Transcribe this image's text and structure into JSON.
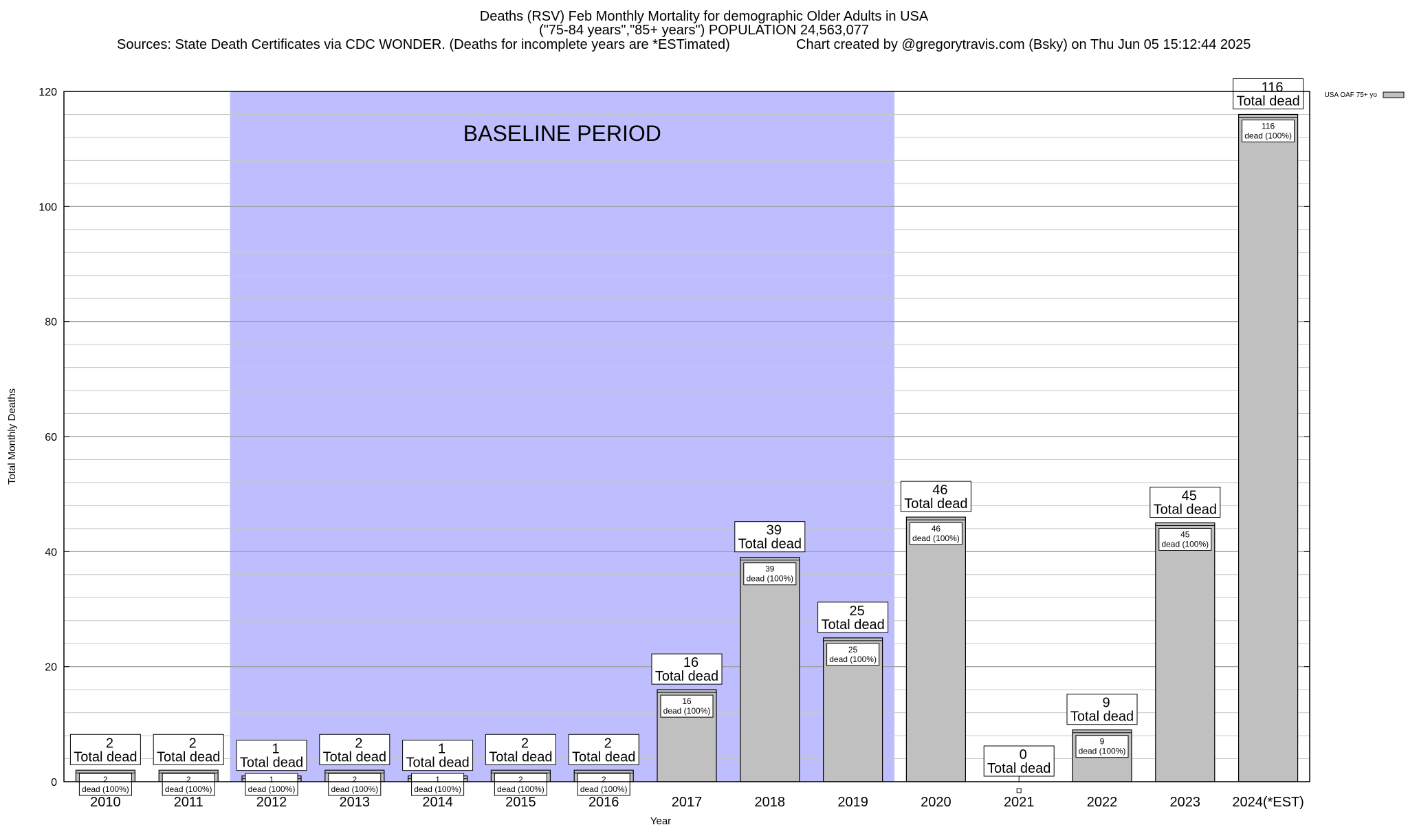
{
  "header": {
    "title_line1": "Deaths (RSV) Feb Monthly Mortality for demographic Older Adults in USA",
    "title_line2": "(\"75-84 years\",\"85+ years\") POPULATION 24,563,077",
    "sources": "Sources: State Death Certificates via CDC WONDER. (Deaths for incomplete years are *ESTimated)",
    "credit": "Chart created by @gregorytravis.com (Bsky) on Thu Jun 05 15:12:44 2025"
  },
  "chart_data": {
    "type": "bar",
    "xlabel": "Year",
    "ylabel": "Total Monthly Deaths",
    "ylim": [
      0,
      120
    ],
    "y_ticks": [
      0,
      20,
      40,
      60,
      80,
      100,
      120
    ],
    "y_minor_step": 4,
    "grid": true,
    "categories": [
      "2010",
      "2011",
      "2012",
      "2013",
      "2014",
      "2015",
      "2016",
      "2017",
      "2018",
      "2019",
      "2020",
      "2021",
      "2022",
      "2023",
      "2024(*EST)"
    ],
    "series": [
      {
        "name": "USA OAF 75+ yo",
        "values": [
          2,
          2,
          1,
          2,
          1,
          2,
          2,
          16,
          39,
          25,
          46,
          0,
          9,
          45,
          116
        ]
      }
    ],
    "total_label_text": "Total dead",
    "inner_label_suffix": "dead (100%)",
    "baseline": {
      "label": "BASELINE PERIOD",
      "from_category": "2012",
      "to_category": "2019"
    },
    "legend_position": "top-right",
    "colors": {
      "bar": "#c0c0c0",
      "baseline": "#bebeff",
      "grid": "#c8c8c8"
    }
  }
}
